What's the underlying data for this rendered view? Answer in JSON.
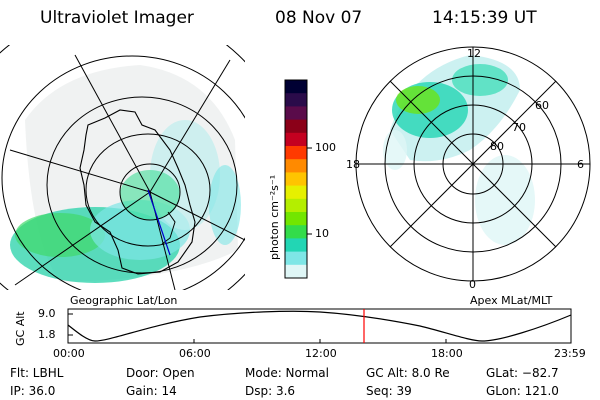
{
  "header": {
    "instrument": "Ultraviolet Imager",
    "date": "08 Nov 07",
    "time": "14:15:39 UT"
  },
  "left_panel": {
    "caption": "Geographic Lat/Lon"
  },
  "right_panel": {
    "caption": "Apex  MLat/MLT",
    "mlt_labels": {
      "top": "12",
      "left": "18",
      "right": "6",
      "bottom": "0"
    },
    "lat_labels": [
      "60",
      "70",
      "80"
    ]
  },
  "colorbar": {
    "unit_label": "photon cm⁻²s⁻¹",
    "ticks": [
      "100",
      "10"
    ],
    "colors": [
      "#000033",
      "#2a0b4a",
      "#5a0b4a",
      "#8b0018",
      "#c40020",
      "#ff3a00",
      "#ff8a00",
      "#ffc400",
      "#e6f000",
      "#b4ee00",
      "#72e600",
      "#33dc4a",
      "#22d6b4",
      "#7ee6e6",
      "#dff6f6"
    ]
  },
  "timeline": {
    "y_label": "GC Alt",
    "y_ticks": [
      "9.0",
      "1.8"
    ],
    "x_ticks": [
      "00:00",
      "06:00",
      "12:00",
      "18:00",
      "23:59"
    ],
    "current_marker_color": "#ff0000"
  },
  "status": {
    "flt": "Flt:  LBHL",
    "ip": "IP:  36.0",
    "door": "Door:  Open",
    "gain": "Gain:  14",
    "mode": "Mode:  Normal",
    "dsp": "Dsp:     3.6",
    "gcalt": "GC Alt:  8.0 Re",
    "seq": "Seq:  39",
    "glat": "GLat:  −82.7",
    "glon": "GLon:  121.0"
  }
}
